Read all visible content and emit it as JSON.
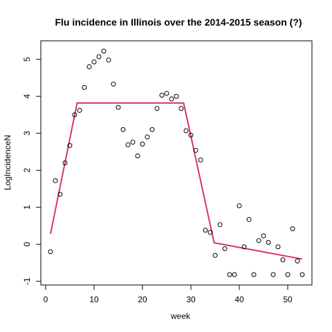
{
  "chart_data": {
    "type": "scatter",
    "title": "Flu incidence in Illinois over the 2014-2015 season (?)",
    "xlabel": "week",
    "ylabel": "LogIncidenceN",
    "xlim": [
      -1,
      55
    ],
    "ylim": [
      -1.1,
      5.5
    ],
    "xticks": [
      0,
      10,
      20,
      30,
      40,
      50
    ],
    "yticks": [
      -1,
      0,
      1,
      2,
      3,
      4,
      5
    ],
    "grid": false,
    "legend": "none",
    "points": {
      "x": [
        1,
        2,
        3,
        4,
        5,
        6,
        7,
        8,
        9,
        10,
        11,
        12,
        13,
        14,
        15,
        16,
        17,
        18,
        19,
        20,
        21,
        22,
        23,
        24,
        25,
        26,
        27,
        28,
        29,
        30,
        31,
        32,
        33,
        34,
        35,
        36,
        37,
        38,
        39,
        40,
        41,
        42,
        43,
        44,
        45,
        46,
        47,
        48,
        49,
        50,
        51,
        52,
        53
      ],
      "y": [
        -0.2,
        1.72,
        1.35,
        2.2,
        2.67,
        3.5,
        3.62,
        4.24,
        4.8,
        4.93,
        5.07,
        5.22,
        4.98,
        4.33,
        3.7,
        3.1,
        2.69,
        2.76,
        2.39,
        2.71,
        2.9,
        3.1,
        3.67,
        4.03,
        4.08,
        3.93,
        4.0,
        3.67,
        3.07,
        2.95,
        2.54,
        2.28,
        0.38,
        0.32,
        -0.3,
        0.53,
        -0.12,
        -0.82,
        -0.82,
        1.04,
        -0.07,
        0.67,
        -0.82,
        0.1,
        0.23,
        0.05,
        -0.82,
        -0.07,
        -0.42,
        -0.82,
        0.42,
        -0.45,
        -0.82
      ],
      "color": "#000000"
    },
    "fit_line": {
      "x": [
        1,
        6.5,
        28.5,
        34.8,
        53
      ],
      "y": [
        0.28,
        3.82,
        3.82,
        0.04,
        -0.4
      ],
      "color": "#D6336C"
    }
  }
}
